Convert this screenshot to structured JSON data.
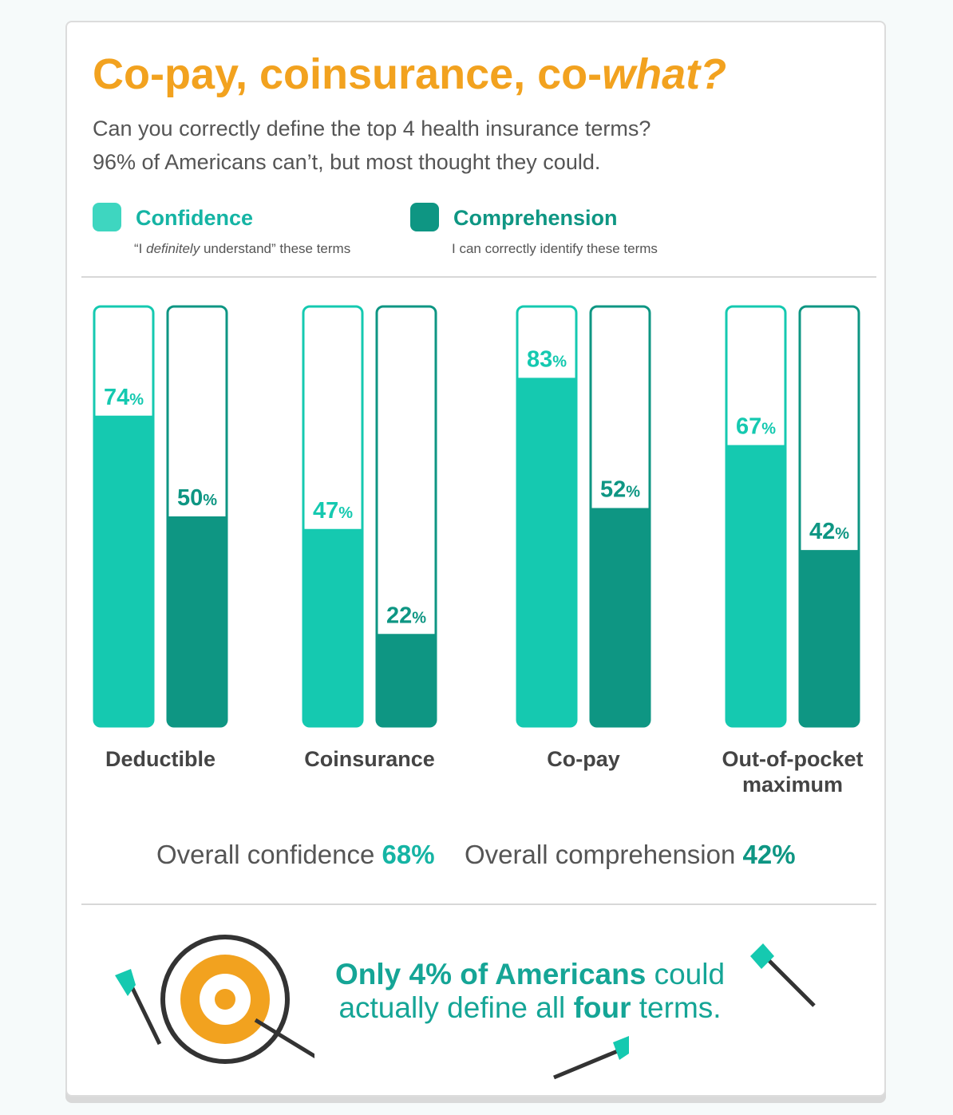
{
  "header": {
    "title_main": "Co-pay, coinsurance, co-",
    "title_emph": "what?",
    "subtitle_line1": "Can you correctly define the top 4 health insurance terms?",
    "subtitle_line2": "96% of Americans can’t, but most thought they could."
  },
  "legend": {
    "confidence": {
      "label": "Confidence",
      "note_pre": "“I ",
      "note_emph": "definitely",
      "note_post": " understand” these terms",
      "color": "#15c9b0"
    },
    "comprehension": {
      "label": "Comprehension",
      "note": "I can correctly identify these terms",
      "color": "#0e9683"
    }
  },
  "chart_data": {
    "type": "bar",
    "categories": [
      "Deductible",
      "Coinsurance",
      "Co-pay",
      "Out-of-pocket maximum"
    ],
    "series": [
      {
        "name": "Confidence",
        "values": [
          74,
          47,
          83,
          67
        ],
        "color": "#15c9b0"
      },
      {
        "name": "Comprehension",
        "values": [
          50,
          22,
          52,
          42
        ],
        "color": "#0e9683"
      }
    ],
    "ylim": [
      0,
      100
    ],
    "value_suffix": "%"
  },
  "overall": {
    "confidence_label": "Overall confidence",
    "confidence_value": "68%",
    "comprehension_label": "Overall comprehension",
    "comprehension_value": "42%"
  },
  "callout": {
    "part1": "Only 4% of Americans",
    "part2": " could actually define all ",
    "part3": "four",
    "part4": " terms."
  },
  "colors": {
    "accent_orange": "#f2a21f",
    "teal_light": "#15c9b0",
    "teal_dark": "#0e9683",
    "text_gray": "#555555"
  }
}
